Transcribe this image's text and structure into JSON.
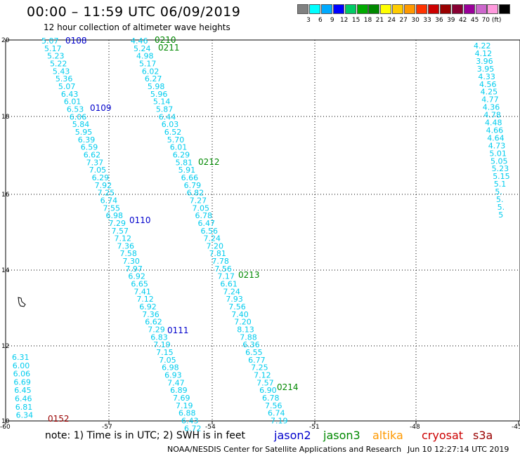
{
  "title": "00:00 – 11:59 UTC 06/09/2019",
  "subtitle": "12 hour collection of altimeter wave heights",
  "legend": {
    "colors": [
      "#808080",
      "#00ffff",
      "#00aaff",
      "#0000ff",
      "#00cc66",
      "#00aa00",
      "#008800",
      "#ffff00",
      "#ffcc00",
      "#ff9900",
      "#ff3300",
      "#cc0000",
      "#990000",
      "#880033",
      "#990099",
      "#cc66cc",
      "#ff99dd",
      "#000000"
    ],
    "labels": [
      "3",
      "6",
      "9",
      "12",
      "15",
      "18",
      "21",
      "24",
      "27",
      "30",
      "33",
      "36",
      "39",
      "42",
      "45",
      "70 (ft)"
    ]
  },
  "axes": {
    "lat_labels": [
      "20",
      "18",
      "16",
      "14",
      "12",
      "10"
    ],
    "lon_labels": [
      "-60",
      "-57",
      "-54",
      "-51",
      "-48",
      "-45"
    ]
  },
  "tracks": [
    {
      "values": [
        "5.07",
        "5.17",
        "5.23",
        "5.22",
        "5.43",
        "5.36",
        "5.07",
        "6.43",
        "6.01",
        "6.53",
        "6.06",
        "5.84",
        "5.95",
        "6.39",
        "6.59",
        "6.62",
        "7.37",
        "7.05",
        "6.29",
        "7.92",
        "7.25",
        "6.74",
        "7.55",
        "6.98",
        "7.29",
        "7.57",
        "7.12",
        "7.36",
        "7.58",
        "7.30",
        "7.97",
        "6.92",
        "6.65",
        "7.41",
        "7.12",
        "6.92",
        "7.36",
        "6.62",
        "7.29",
        "6.83",
        "7.19",
        "7.15",
        "7.05",
        "6.98",
        "6.93",
        "7.47",
        "6.89",
        "7.69",
        "7.19",
        "6.88",
        "6.43",
        "6.72"
      ]
    },
    {
      "values": [
        "4.46",
        "5.24",
        "4.98",
        "5.17",
        "6.02",
        "6.27",
        "5.98",
        "5.96",
        "5.14",
        "5.87",
        "6.44",
        "6.03",
        "6.52",
        "5.70",
        "6.01",
        "6.29",
        "5.81",
        "5.91",
        "6.66",
        "6.79",
        "6.82",
        "7.27",
        "7.05",
        "6.78",
        "6.47",
        "6.56",
        "7.24",
        "7.20",
        "7.81",
        "7.78",
        "7.56",
        "7.17",
        "6.61",
        "7.24",
        "7.93",
        "7.56",
        "7.40",
        "7.20",
        "8.13",
        "7.88",
        "6.36",
        "6.55",
        "6.77",
        "7.25",
        "7.12",
        "7.57",
        "6.90",
        "6.78",
        "7.56",
        "6.74",
        "7.19"
      ]
    },
    {
      "values": [
        "4.22",
        "4.12",
        "3.96",
        "3.95",
        "4.33",
        "4.56",
        "4.25",
        "4.77",
        "4.36",
        "4.78",
        "4.48",
        "4.66",
        "4.64",
        "4.73",
        "5.01",
        "5.05",
        "5.23",
        "5.15",
        "5.1",
        "5.",
        "5.",
        "5.",
        "5"
      ]
    },
    {
      "values": [
        "6.31",
        "6.00",
        "6.06",
        "6.69",
        "6.45",
        "6.46",
        "6.81",
        "6.34"
      ]
    }
  ],
  "passes": [
    "0108",
    "0109",
    "0110",
    "0111",
    "0210",
    "0211",
    "0212",
    "0213",
    "0214",
    "0152"
  ],
  "note": "note:  1) Time is in UTC;  2) SWH is in feet",
  "missions": [
    {
      "name": "jason2",
      "color": "#0000cc"
    },
    {
      "name": "jason3",
      "color": "#008800"
    },
    {
      "name": "altika",
      "color": "#ff9900"
    },
    {
      "name": "cryosat",
      "color": "#cc0000"
    },
    {
      "name": "s3a",
      "color": "#990000"
    }
  ],
  "credit": "NOAA/NESDIS Center for Satellite Applications and Research",
  "timestamp": "Jun 10 12:27:14 UTC 2019"
}
